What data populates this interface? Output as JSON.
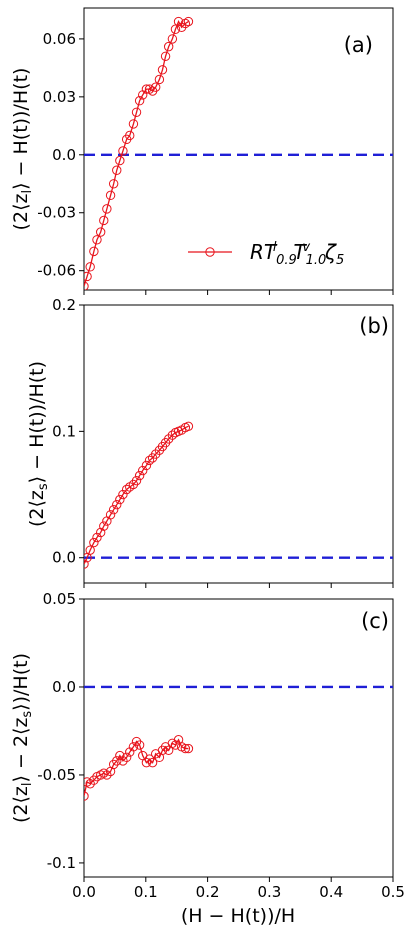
{
  "chart_data": [
    {
      "type": "line",
      "panel_label": "(a)",
      "ylabel": "(2⟨z_l⟩ − H(t))/H(t)",
      "xlim": [
        0,
        0.5
      ],
      "ylim": [
        -0.07,
        0.076
      ],
      "yticks": [
        -0.06,
        -0.03,
        0.0,
        0.03,
        0.06
      ],
      "ytick_labels": [
        "-0.06",
        "-0.03",
        "0.0",
        "0.03",
        "0.06"
      ],
      "reference_line": {
        "y": 0.0,
        "style": "dashed",
        "color": "#1f1fd6"
      },
      "legend": {
        "placement": "lower-right",
        "text": "RT^l_0.9 T^v_1.0 ζ_5"
      },
      "series": [
        {
          "color": "#e8141c",
          "marker": "open-circle",
          "x": [
            0.0,
            0.005,
            0.01,
            0.016,
            0.021,
            0.027,
            0.032,
            0.037,
            0.043,
            0.048,
            0.053,
            0.058,
            0.063,
            0.069,
            0.074,
            0.08,
            0.085,
            0.09,
            0.095,
            0.101,
            0.106,
            0.111,
            0.116,
            0.122,
            0.127,
            0.132,
            0.137,
            0.143,
            0.148,
            0.153,
            0.158,
            0.164,
            0.169
          ],
          "y": [
            -0.068,
            -0.063,
            -0.058,
            -0.05,
            -0.044,
            -0.04,
            -0.034,
            -0.028,
            -0.021,
            -0.015,
            -0.008,
            -0.003,
            0.002,
            0.008,
            0.01,
            0.016,
            0.022,
            0.028,
            0.031,
            0.034,
            0.034,
            0.033,
            0.035,
            0.039,
            0.044,
            0.051,
            0.056,
            0.06,
            0.065,
            0.069,
            0.066,
            0.068,
            0.069
          ]
        }
      ]
    },
    {
      "type": "line",
      "panel_label": "(b)",
      "ylabel": "(2⟨z_s⟩ − H(t))/H(t)",
      "xlim": [
        0,
        0.5
      ],
      "ylim": [
        -0.02,
        0.2
      ],
      "yticks": [
        0.0,
        0.1,
        0.2
      ],
      "ytick_labels": [
        "0.0",
        "0.1",
        "0.2"
      ],
      "reference_line": {
        "y": 0.0,
        "style": "dashed",
        "color": "#1f1fd6"
      },
      "series": [
        {
          "color": "#e8141c",
          "marker": "open-circle",
          "x": [
            0.0,
            0.005,
            0.01,
            0.016,
            0.021,
            0.027,
            0.032,
            0.037,
            0.043,
            0.048,
            0.053,
            0.058,
            0.063,
            0.069,
            0.074,
            0.08,
            0.085,
            0.09,
            0.095,
            0.101,
            0.106,
            0.111,
            0.116,
            0.122,
            0.127,
            0.132,
            0.137,
            0.143,
            0.148,
            0.153,
            0.158,
            0.164,
            0.169
          ],
          "y": [
            -0.005,
            0.0,
            0.006,
            0.012,
            0.016,
            0.02,
            0.025,
            0.029,
            0.034,
            0.038,
            0.042,
            0.046,
            0.05,
            0.054,
            0.056,
            0.058,
            0.061,
            0.065,
            0.069,
            0.073,
            0.077,
            0.079,
            0.082,
            0.085,
            0.088,
            0.091,
            0.094,
            0.097,
            0.099,
            0.1,
            0.101,
            0.103,
            0.104
          ]
        }
      ]
    },
    {
      "type": "line",
      "panel_label": "(c)",
      "ylabel": "(2⟨z_l⟩ − 2⟨z_s⟩)/H(t)",
      "xlabel": "(H − H(t))/H",
      "xlim": [
        0,
        0.5
      ],
      "ylim": [
        -0.108,
        0.05
      ],
      "yticks": [
        -0.1,
        -0.05,
        0.0,
        0.05
      ],
      "ytick_labels": [
        "-0.1",
        "-0.05",
        "0.0",
        "0.05"
      ],
      "xticks": [
        0.0,
        0.1,
        0.2,
        0.3,
        0.4,
        0.5
      ],
      "xtick_labels": [
        "0.0",
        "0.1",
        "0.2",
        "0.3",
        "0.4",
        "0.5"
      ],
      "reference_line": {
        "y": 0.0,
        "style": "dashed",
        "color": "#1f1fd6"
      },
      "series": [
        {
          "color": "#e8141c",
          "marker": "open-circle",
          "x": [
            0.0,
            0.005,
            0.01,
            0.016,
            0.021,
            0.027,
            0.032,
            0.037,
            0.043,
            0.048,
            0.053,
            0.058,
            0.063,
            0.069,
            0.074,
            0.08,
            0.085,
            0.09,
            0.095,
            0.101,
            0.106,
            0.111,
            0.116,
            0.122,
            0.127,
            0.132,
            0.137,
            0.143,
            0.148,
            0.153,
            0.158,
            0.164,
            0.169
          ],
          "y": [
            -0.062,
            -0.054,
            -0.055,
            -0.053,
            -0.051,
            -0.05,
            -0.049,
            -0.05,
            -0.048,
            -0.044,
            -0.042,
            -0.039,
            -0.042,
            -0.04,
            -0.037,
            -0.034,
            -0.031,
            -0.033,
            -0.039,
            -0.043,
            -0.041,
            -0.043,
            -0.038,
            -0.04,
            -0.036,
            -0.034,
            -0.036,
            -0.032,
            -0.033,
            -0.03,
            -0.034,
            -0.035,
            -0.035
          ]
        }
      ]
    }
  ]
}
